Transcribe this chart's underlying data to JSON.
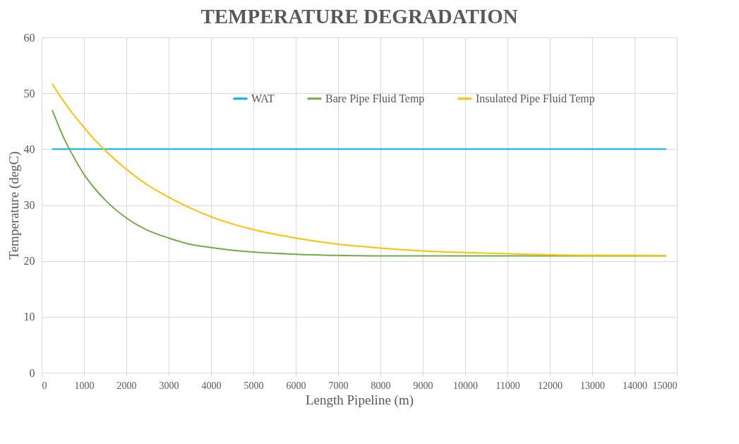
{
  "chart_data": {
    "type": "line",
    "title": "TEMPERATURE DEGRADATION",
    "xlabel": "Length Pipeline (m)",
    "ylabel": "Temperature  (degC)",
    "xlim": [
      0,
      15000
    ],
    "xticks": [
      0,
      1000,
      2000,
      3000,
      4000,
      5000,
      6000,
      7000,
      8000,
      9000,
      10000,
      11000,
      12000,
      13000,
      14000,
      15000
    ],
    "ylim": [
      0,
      60
    ],
    "yticks": [
      0,
      10,
      20,
      30,
      40,
      50,
      60
    ],
    "grid": true,
    "legend": "top",
    "line_style": "solid",
    "series": [
      {
        "name": "WAT",
        "color": "#00b0f0",
        "x": [
          250,
          14750
        ],
        "values": [
          40,
          40
        ]
      },
      {
        "name": "Bare Pipe Fluid Temp",
        "color": "#70ad47",
        "x": [
          250,
          500,
          750,
          1000,
          1250,
          1500,
          2000,
          2500,
          3000,
          3500,
          4000,
          5000,
          6000,
          7000,
          8000,
          9000,
          10000,
          11000,
          12000,
          13000,
          14000,
          14750
        ],
        "values": [
          47.0,
          42.4,
          38.7,
          35.5,
          33.0,
          30.9,
          27.7,
          25.5,
          24.1,
          23.0,
          22.4,
          21.6,
          21.2,
          21.0,
          20.9,
          20.9,
          20.9,
          20.9,
          20.9,
          20.9,
          20.9,
          20.9
        ]
      },
      {
        "name": "Insulated Pipe Fluid Temp",
        "color": "#ffc000",
        "x": [
          250,
          500,
          750,
          1000,
          1250,
          1500,
          2000,
          2500,
          3000,
          3500,
          4000,
          5000,
          6000,
          7000,
          8000,
          9000,
          10000,
          11000,
          12000,
          13000,
          14000,
          14750
        ],
        "values": [
          51.7,
          48.8,
          46.2,
          43.9,
          41.7,
          39.8,
          36.4,
          33.6,
          31.4,
          29.5,
          27.9,
          25.6,
          24.1,
          23.0,
          22.3,
          21.8,
          21.5,
          21.3,
          21.1,
          21.0,
          21.0,
          20.9
        ]
      }
    ]
  }
}
